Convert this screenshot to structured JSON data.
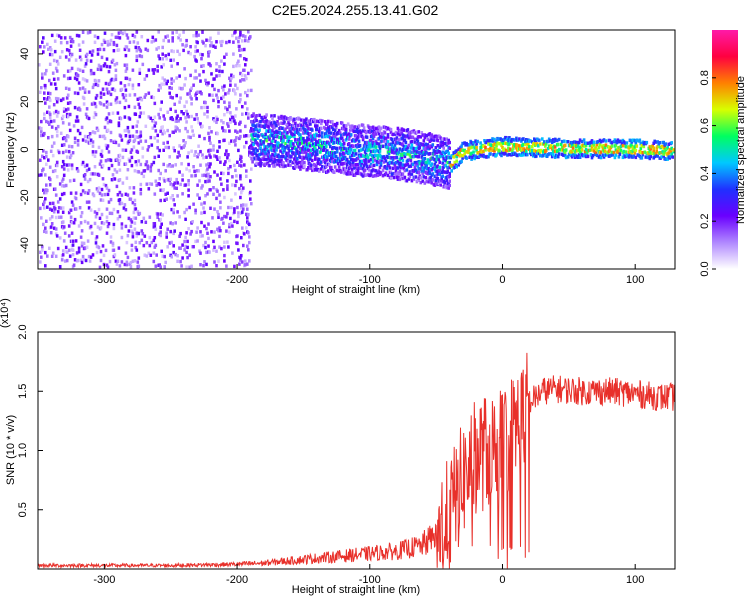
{
  "page_title": "C2E5.2024.255.13.41.G02",
  "chart_data": [
    {
      "type": "heatmap",
      "title": "C2E5.2024.255.13.41.G02",
      "xlabel": "Height of straight line (km)",
      "ylabel": "Frequency (Hz)",
      "xlim": [
        -350,
        130
      ],
      "ylim": [
        -50,
        50
      ],
      "x_ticks": [
        -300,
        -200,
        -100,
        0,
        100
      ],
      "x_tick_labels": [
        "-300",
        "-200",
        "-100",
        "0",
        "100"
      ],
      "y_ticks": [
        -40,
        -20,
        0,
        20,
        40
      ],
      "y_tick_labels": [
        "-40",
        "-20",
        "0",
        "20",
        "40"
      ],
      "colorbar": {
        "label": "Normalized spectral amplitude",
        "range": [
          0,
          1
        ],
        "ticks": [
          0.0,
          0.2,
          0.4,
          0.6,
          0.8
        ],
        "tick_labels": [
          "0.0",
          "0.2",
          "0.4",
          "0.6",
          "0.8"
        ],
        "colormap": [
          "#ffffff",
          "#b088ff",
          "#6a00ff",
          "#2030ff",
          "#00c8ff",
          "#00ff60",
          "#d8ff00",
          "#ff8000",
          "#ff0040",
          "#ff1aa8"
        ]
      },
      "regions": [
        {
          "x_range": [
            -350,
            -190
          ],
          "freq_range": [
            -50,
            50
          ],
          "amplitude": [
            0.05,
            0.25
          ]
        },
        {
          "x_range": [
            -190,
            -40
          ],
          "freq_range": [
            -10,
            10
          ],
          "amplitude": [
            0.2,
            0.6
          ]
        },
        {
          "x_range": [
            -40,
            130
          ],
          "freq_range": [
            -3,
            3
          ],
          "amplitude": [
            0.6,
            1.0
          ]
        }
      ],
      "ridge": {
        "x": [
          -190,
          -150,
          -120,
          -100,
          -80,
          -60,
          -40,
          -30,
          0,
          50,
          100,
          130
        ],
        "freq": [
          5,
          3,
          1,
          0,
          -1,
          -3,
          -5,
          0,
          2,
          1,
          1,
          0
        ]
      }
    },
    {
      "type": "line",
      "xlabel": "Height of straight line (km)",
      "ylabel": "SNR (10 * v/v)",
      "y_scale_label": "(x10⁴)",
      "y_multiplier": 10000,
      "xlim": [
        -350,
        130
      ],
      "ylim": [
        0,
        2.0
      ],
      "x_ticks": [
        -300,
        -200,
        -100,
        0,
        100
      ],
      "x_tick_labels": [
        "-300",
        "-200",
        "-100",
        "0",
        "100"
      ],
      "y_ticks": [
        0.5,
        1.0,
        1.5,
        2.0
      ],
      "y_tick_labels": [
        "0.5",
        "1.0",
        "1.5",
        "2.0"
      ],
      "color": "#e8302a",
      "series": [
        {
          "x": [
            -350,
            -300,
            -250,
            -200,
            -180,
            -160,
            -140,
            -120,
            -100,
            -80,
            -60,
            -50,
            -40,
            -30,
            -20,
            -10,
            0,
            10,
            20,
            30,
            40,
            60,
            80,
            100,
            120,
            130
          ],
          "values": [
            0.03,
            0.03,
            0.03,
            0.04,
            0.05,
            0.07,
            0.09,
            0.11,
            0.13,
            0.15,
            0.2,
            0.3,
            0.45,
            0.75,
            0.95,
            1.0,
            1.05,
            1.2,
            1.4,
            1.5,
            1.52,
            1.5,
            1.5,
            1.48,
            1.45,
            1.45
          ]
        }
      ]
    }
  ]
}
